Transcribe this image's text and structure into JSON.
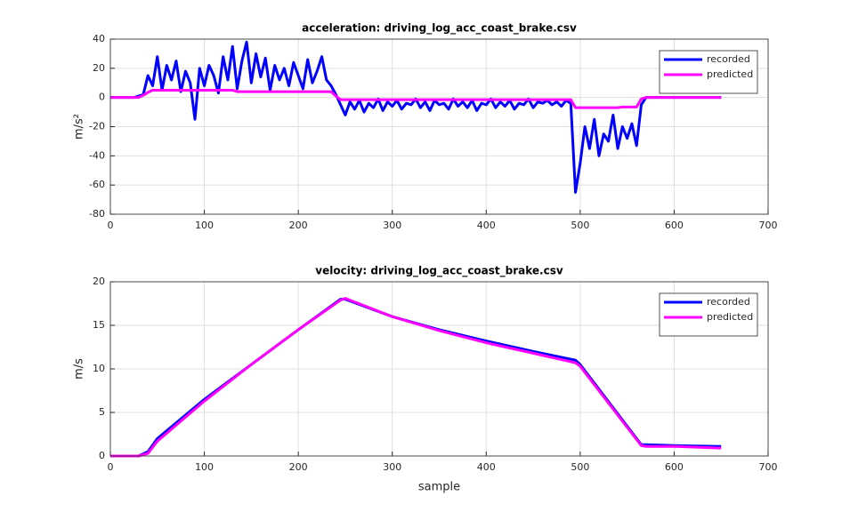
{
  "chart_data": [
    {
      "type": "line",
      "title": "acceleration: driving_log_acc_coast_brake.csv",
      "ylabel": "m/s²",
      "x": [
        0,
        5,
        10,
        15,
        20,
        25,
        30,
        35,
        40,
        45,
        50,
        55,
        60,
        65,
        70,
        75,
        80,
        85,
        90,
        95,
        100,
        105,
        110,
        115,
        120,
        125,
        130,
        135,
        140,
        145,
        150,
        155,
        160,
        165,
        170,
        175,
        180,
        185,
        190,
        195,
        200,
        205,
        210,
        215,
        220,
        225,
        230,
        235,
        240,
        245,
        250,
        255,
        260,
        265,
        270,
        275,
        280,
        285,
        290,
        295,
        300,
        305,
        310,
        315,
        320,
        325,
        330,
        335,
        340,
        345,
        350,
        355,
        360,
        365,
        370,
        375,
        380,
        385,
        390,
        395,
        400,
        405,
        410,
        415,
        420,
        425,
        430,
        435,
        440,
        445,
        450,
        455,
        460,
        465,
        470,
        475,
        480,
        485,
        490,
        495,
        500,
        505,
        510,
        515,
        520,
        525,
        530,
        535,
        540,
        545,
        550,
        555,
        560,
        565,
        570,
        575,
        580,
        585,
        590,
        595,
        600,
        605,
        610,
        615,
        620,
        625,
        630,
        635,
        640,
        645,
        650
      ],
      "series": [
        {
          "name": "recorded",
          "color": "#0000ff",
          "values": [
            0,
            0,
            0,
            0,
            0,
            0,
            1,
            2,
            15,
            8,
            28,
            5,
            22,
            12,
            25,
            4,
            18,
            10,
            -15,
            20,
            8,
            22,
            15,
            3,
            28,
            12,
            35,
            6,
            25,
            38,
            10,
            30,
            14,
            27,
            5,
            22,
            12,
            20,
            8,
            24,
            15,
            6,
            26,
            10,
            18,
            28,
            12,
            8,
            2,
            -5,
            -12,
            -3,
            -8,
            -2,
            -10,
            -4,
            -7,
            -1,
            -9,
            -3,
            -6,
            -2,
            -8,
            -4,
            -5,
            -1,
            -7,
            -3,
            -9,
            -2,
            -5,
            -4,
            -8,
            -1,
            -6,
            -3,
            -7,
            -2,
            -9,
            -4,
            -5,
            -1,
            -7,
            -3,
            -6,
            -2,
            -8,
            -4,
            -5,
            -1,
            -7,
            -3,
            -4,
            -2,
            -5,
            -3,
            -6,
            -2,
            -4,
            -65,
            -45,
            -20,
            -35,
            -15,
            -40,
            -25,
            -30,
            -12,
            -35,
            -20,
            -28,
            -18,
            -33,
            -5,
            0,
            0,
            0,
            0,
            0,
            0,
            0,
            0,
            0,
            0,
            0,
            0,
            0,
            0,
            0,
            0,
            0
          ]
        },
        {
          "name": "predicted",
          "color": "#ff00ff",
          "values": [
            0,
            0,
            0,
            0,
            0,
            0,
            0,
            1.5,
            3.5,
            5,
            5,
            5,
            5,
            5,
            5,
            5,
            5,
            5,
            5,
            5,
            5,
            5,
            5,
            5,
            5,
            5,
            5,
            4,
            4,
            4,
            4,
            4,
            4,
            4,
            4,
            4,
            4,
            4,
            4,
            4,
            4,
            4,
            4,
            4,
            4,
            4,
            4,
            4,
            1,
            -1.5,
            -1.5,
            -1.5,
            -1.5,
            -1.5,
            -1.5,
            -1.5,
            -1.5,
            -1.5,
            -1.5,
            -1.5,
            -1.5,
            -1.5,
            -1.5,
            -1.5,
            -1.5,
            -1.5,
            -1.5,
            -1.5,
            -1.5,
            -1.5,
            -1.5,
            -1.5,
            -1.5,
            -1.5,
            -1.5,
            -1.5,
            -1.5,
            -1.5,
            -1.5,
            -1.5,
            -1.5,
            -1.5,
            -1.5,
            -1.5,
            -1.5,
            -1.5,
            -1.5,
            -1.5,
            -1.5,
            -1.5,
            -1.5,
            -1.5,
            -1.5,
            -1.5,
            -1.5,
            -1.5,
            -1.5,
            -1.5,
            -1.5,
            -7,
            -7,
            -7,
            -7,
            -7,
            -7,
            -7,
            -7,
            -7,
            -7,
            -6.5,
            -6.5,
            -6.5,
            -6.5,
            -1,
            0,
            0,
            0,
            0,
            0,
            0,
            0,
            0,
            0,
            0,
            0,
            0,
            0,
            0,
            0,
            0,
            0
          ]
        }
      ],
      "xlim": [
        0,
        700
      ],
      "xticks": [
        0,
        100,
        200,
        300,
        400,
        500,
        600,
        700
      ],
      "ylim": [
        -80,
        40
      ],
      "yticks": [
        -80,
        -60,
        -40,
        -20,
        0,
        20,
        40
      ],
      "grid": true,
      "legend": "northeast"
    },
    {
      "type": "line",
      "title": "velocity: driving_log_acc_coast_brake.csv",
      "ylabel": "m/s",
      "xlabel": "sample",
      "x": [
        0,
        30,
        40,
        50,
        100,
        150,
        200,
        245,
        250,
        300,
        350,
        400,
        450,
        495,
        500,
        565,
        570,
        600,
        650
      ],
      "series": [
        {
          "name": "recorded",
          "color": "#0000ff",
          "values": [
            0,
            0,
            0.5,
            2,
            6.5,
            10.5,
            14.5,
            18,
            18,
            16,
            14.5,
            13.2,
            12,
            11,
            10.5,
            1.3,
            1.3,
            1.2,
            1.1
          ]
        },
        {
          "name": "predicted",
          "color": "#ff00ff",
          "values": [
            0,
            0,
            0.3,
            1.7,
            6.3,
            10.5,
            14.5,
            17.9,
            18.1,
            16,
            14.4,
            13,
            11.8,
            10.7,
            10.3,
            1.2,
            1.1,
            1.1,
            0.9
          ]
        }
      ],
      "xlim": [
        0,
        700
      ],
      "xticks": [
        0,
        100,
        200,
        300,
        400,
        500,
        600,
        700
      ],
      "ylim": [
        0,
        20
      ],
      "yticks": [
        0,
        5,
        10,
        15,
        20
      ],
      "grid": true,
      "legend": "northeast"
    }
  ]
}
